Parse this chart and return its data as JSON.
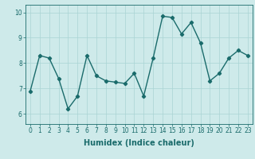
{
  "x": [
    0,
    1,
    2,
    3,
    4,
    5,
    6,
    7,
    8,
    9,
    10,
    11,
    12,
    13,
    14,
    15,
    16,
    17,
    18,
    19,
    20,
    21,
    22,
    23
  ],
  "y": [
    6.9,
    8.3,
    8.2,
    7.4,
    6.2,
    6.7,
    8.3,
    7.5,
    7.3,
    7.25,
    7.2,
    7.6,
    6.7,
    8.2,
    9.85,
    9.8,
    9.15,
    9.6,
    8.8,
    7.3,
    7.6,
    8.2,
    8.5,
    8.3
  ],
  "line_color": "#1a6b6b",
  "marker": "D",
  "marker_size": 2.2,
  "linewidth": 1.0,
  "bg_color": "#ceeaea",
  "grid_color": "#aad4d4",
  "xlabel": "Humidex (Indice chaleur)",
  "xlabel_fontsize": 7,
  "tick_color": "#1a6b6b",
  "tick_fontsize": 5.5,
  "xlim": [
    -0.5,
    23.5
  ],
  "ylim": [
    5.6,
    10.3
  ],
  "yticks": [
    6,
    7,
    8,
    9,
    10
  ],
  "xticks": [
    0,
    1,
    2,
    3,
    4,
    5,
    6,
    7,
    8,
    9,
    10,
    11,
    12,
    13,
    14,
    15,
    16,
    17,
    18,
    19,
    20,
    21,
    22,
    23
  ]
}
